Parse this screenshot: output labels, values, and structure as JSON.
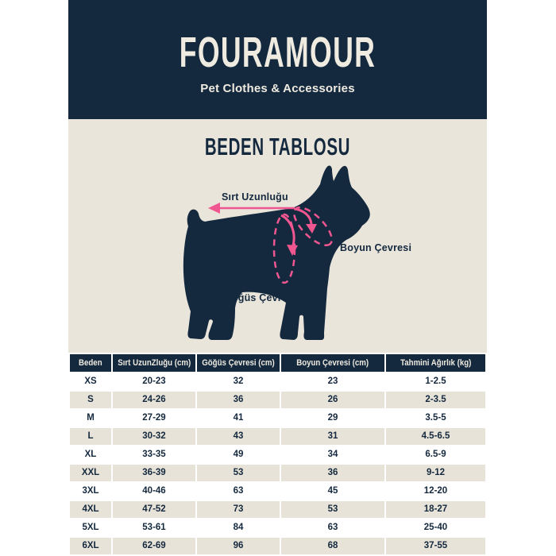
{
  "brand": {
    "name": "FOURAMOUR",
    "tagline": "Pet Clothes & Accessories"
  },
  "section": {
    "title": "BEDEN TABLOSU"
  },
  "diagram": {
    "labels": {
      "back_length": "Sırt Uzunluğu",
      "neck_girth": "Boyun Çevresi",
      "chest_girth": "Göğüs Çevresi"
    }
  },
  "size_table": {
    "headers": [
      "Beden",
      "Sırt UzunZluğu (cm)",
      "Göğüs Çevresi (cm)",
      "Boyun Çevresi (cm)",
      "Tahmini Ağırlık (kg)"
    ],
    "rows": [
      [
        "XS",
        "20-23",
        "32",
        "23",
        "1-2.5"
      ],
      [
        "S",
        "24-26",
        "36",
        "26",
        "2-3.5"
      ],
      [
        "M",
        "27-29",
        "41",
        "29",
        "3.5-5"
      ],
      [
        "L",
        "30-32",
        "43",
        "31",
        "4.5-6.5"
      ],
      [
        "XL",
        "33-35",
        "49",
        "34",
        "6.5-9"
      ],
      [
        "XXL",
        "36-39",
        "53",
        "36",
        "9-12"
      ],
      [
        "3XL",
        "40-46",
        "63",
        "45",
        "12-20"
      ],
      [
        "4XL",
        "47-52",
        "73",
        "53",
        "18-27"
      ],
      [
        "5XL",
        "53-61",
        "84",
        "63",
        "25-40"
      ],
      [
        "6XL",
        "62-69",
        "96",
        "68",
        "37-55"
      ]
    ]
  },
  "colors": {
    "navy": "#14283E",
    "cream": "#E9E5DB",
    "row_alt": "#E7E3D8",
    "pink": "#F0568F",
    "light_text": "#EFEBE0"
  }
}
